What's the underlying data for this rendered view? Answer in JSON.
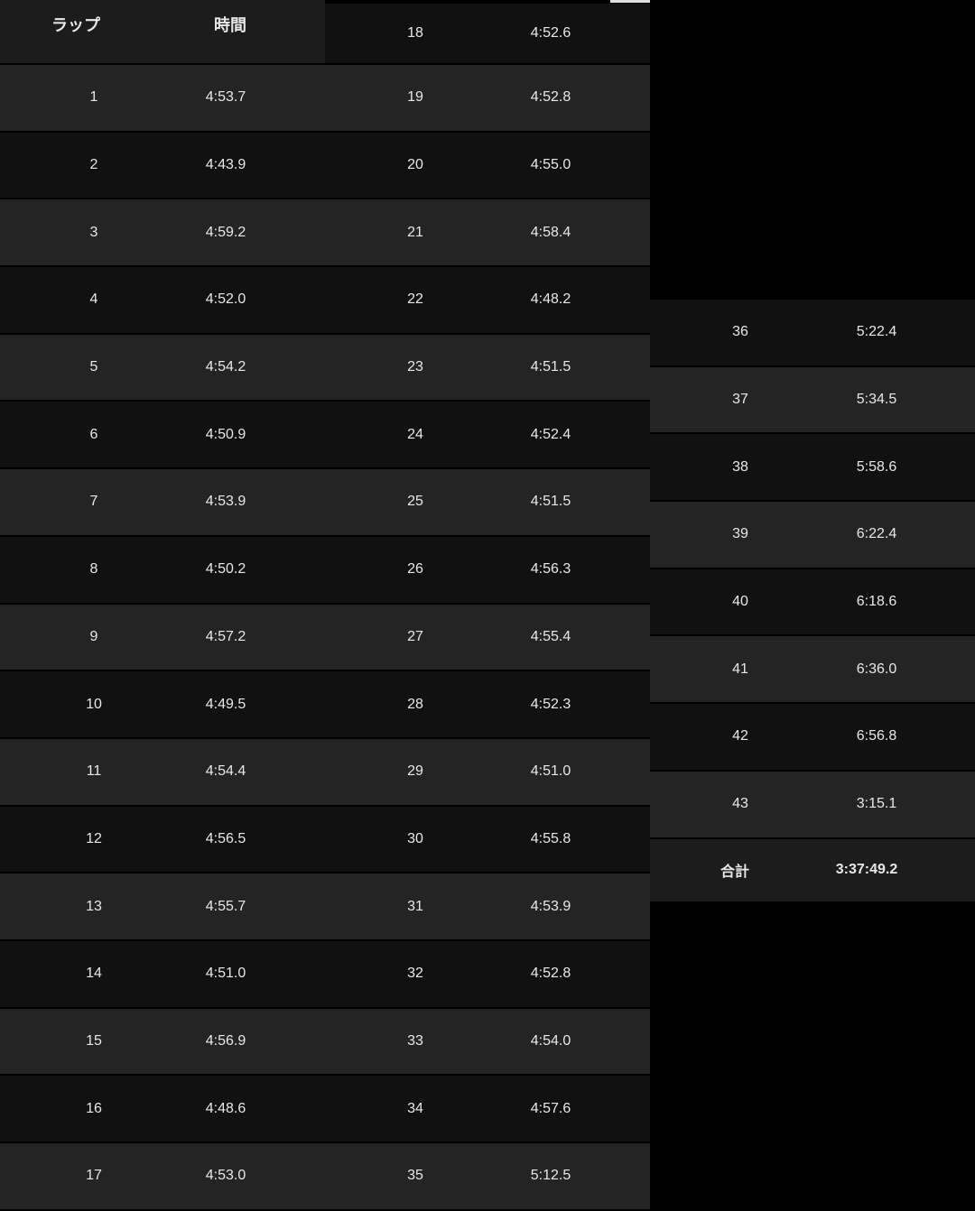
{
  "header": {
    "lap": "ラップ",
    "time": "時間"
  },
  "laps": [
    {
      "lap": "1",
      "time": "4:53.7"
    },
    {
      "lap": "2",
      "time": "4:43.9"
    },
    {
      "lap": "3",
      "time": "4:59.2"
    },
    {
      "lap": "4",
      "time": "4:52.0"
    },
    {
      "lap": "5",
      "time": "4:54.2"
    },
    {
      "lap": "6",
      "time": "4:50.9"
    },
    {
      "lap": "7",
      "time": "4:53.9"
    },
    {
      "lap": "8",
      "time": "4:50.2"
    },
    {
      "lap": "9",
      "time": "4:57.2"
    },
    {
      "lap": "10",
      "time": "4:49.5"
    },
    {
      "lap": "11",
      "time": "4:54.4"
    },
    {
      "lap": "12",
      "time": "4:56.5"
    },
    {
      "lap": "13",
      "time": "4:55.7"
    },
    {
      "lap": "14",
      "time": "4:51.0"
    },
    {
      "lap": "15",
      "time": "4:56.9"
    },
    {
      "lap": "16",
      "time": "4:48.6"
    },
    {
      "lap": "17",
      "time": "4:53.0"
    },
    {
      "lap": "18",
      "time": "4:52.6"
    },
    {
      "lap": "19",
      "time": "4:52.8"
    },
    {
      "lap": "20",
      "time": "4:55.0"
    },
    {
      "lap": "21",
      "time": "4:58.4"
    },
    {
      "lap": "22",
      "time": "4:48.2"
    },
    {
      "lap": "23",
      "time": "4:51.5"
    },
    {
      "lap": "24",
      "time": "4:52.4"
    },
    {
      "lap": "25",
      "time": "4:51.5"
    },
    {
      "lap": "26",
      "time": "4:56.3"
    },
    {
      "lap": "27",
      "time": "4:55.4"
    },
    {
      "lap": "28",
      "time": "4:52.3"
    },
    {
      "lap": "29",
      "time": "4:51.0"
    },
    {
      "lap": "30",
      "time": "4:55.8"
    },
    {
      "lap": "31",
      "time": "4:53.9"
    },
    {
      "lap": "32",
      "time": "4:52.8"
    },
    {
      "lap": "33",
      "time": "4:54.0"
    },
    {
      "lap": "34",
      "time": "4:57.6"
    },
    {
      "lap": "35",
      "time": "5:12.5"
    },
    {
      "lap": "36",
      "time": "5:22.4"
    },
    {
      "lap": "37",
      "time": "5:34.5"
    },
    {
      "lap": "38",
      "time": "5:58.6"
    },
    {
      "lap": "39",
      "time": "6:22.4"
    },
    {
      "lap": "40",
      "time": "6:18.6"
    },
    {
      "lap": "41",
      "time": "6:36.0"
    },
    {
      "lap": "42",
      "time": "6:56.8"
    },
    {
      "lap": "43",
      "time": "3:15.1"
    }
  ],
  "total": {
    "label": "合計",
    "time": "3:37:49.2"
  },
  "colors": {
    "row_light": "#242424",
    "row_dark": "#111111",
    "header": "#1c1c1c",
    "text": "#e8e8e8"
  }
}
